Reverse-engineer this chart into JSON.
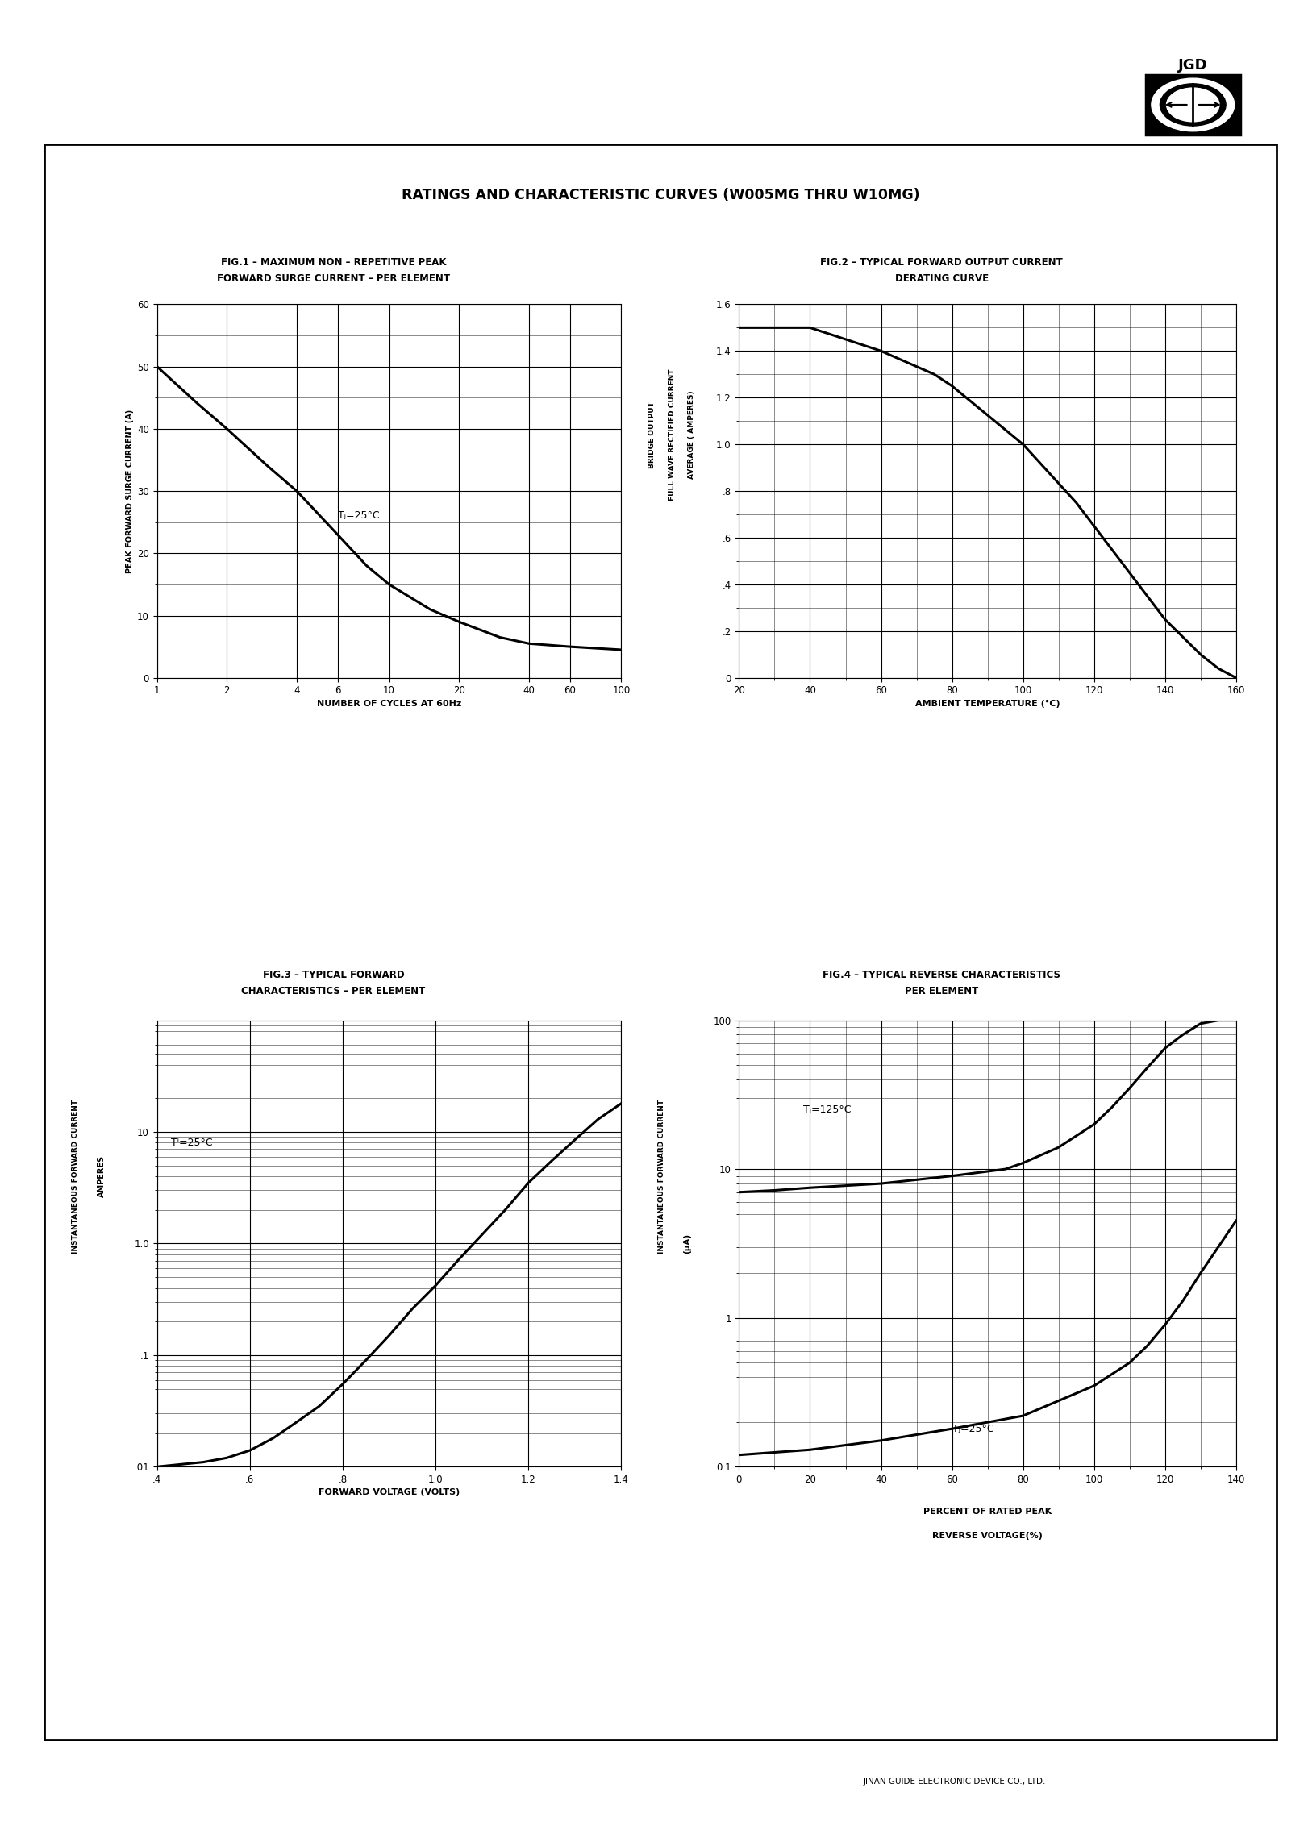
{
  "page_title": "RATINGS AND CHARACTERISTIC CURVES (W005MG THRU W10MG)",
  "fig1_title1": "FIG.1 – MAXIMUM NON – REPETITIVE PEAK",
  "fig1_title2": "FORWARD SURGE CURRENT – PER ELEMENT",
  "fig1_xlabel": "NUMBER OF CYCLES AT 60Hz",
  "fig1_ylabel": "PEAK FORWARD SURGE CURRENT (A)",
  "fig1_annotation": "Tⱼ=25°C",
  "fig1_x": [
    1,
    1.5,
    2,
    3,
    4,
    6,
    8,
    10,
    15,
    20,
    30,
    40,
    60,
    100
  ],
  "fig1_y": [
    50,
    44,
    40,
    34,
    30,
    23,
    18,
    15,
    11,
    9,
    6.5,
    5.5,
    5.0,
    4.5
  ],
  "fig1_xlim": [
    1,
    100
  ],
  "fig1_ylim": [
    0,
    60
  ],
  "fig1_yticks": [
    0,
    10,
    20,
    30,
    40,
    50,
    60
  ],
  "fig1_xticks": [
    1,
    2,
    4,
    6,
    10,
    20,
    40,
    60,
    100
  ],
  "fig2_title1": "FIG.2 – TYPICAL FORWARD OUTPUT CURRENT",
  "fig2_title2": "DERATING CURVE",
  "fig2_xlabel": "AMBIENT TEMPERATURE (°C)",
  "fig2_ylabel1": "BRIDGE OUTPUT",
  "fig2_ylabel2": "FULL WAVE RECTIFIED CURRENT",
  "fig2_ylabel3": "AVERAGE ( AMPERES)",
  "fig2_x": [
    20,
    25,
    40,
    60,
    75,
    80,
    100,
    115,
    120,
    135,
    140,
    150,
    155,
    160
  ],
  "fig2_y": [
    1.5,
    1.5,
    1.5,
    1.4,
    1.3,
    1.25,
    1.0,
    0.75,
    0.65,
    0.35,
    0.25,
    0.1,
    0.04,
    0.0
  ],
  "fig2_xlim": [
    20,
    160
  ],
  "fig2_ylim": [
    0,
    1.6
  ],
  "fig2_yticks": [
    0.0,
    0.2,
    0.4,
    0.6,
    0.8,
    1.0,
    1.2,
    1.4,
    1.6
  ],
  "fig2_ytick_labels": [
    "0",
    ".2",
    ".4",
    ".6",
    ".8",
    "1.0",
    "1.2",
    "1.4",
    "1.6"
  ],
  "fig2_xticks": [
    20,
    40,
    60,
    80,
    100,
    120,
    140,
    160
  ],
  "fig3_title1": "FIG.3 – TYPICAL FORWARD",
  "fig3_title2": "CHARACTERISTICS – PER ELEMENT",
  "fig3_xlabel": "FORWARD VOLTAGE (VOLTS)",
  "fig3_ylabel1": "INSTANTANEOUS FORWARD CURRENT",
  "fig3_ylabel2": "AMPERES",
  "fig3_annotation": "Tᴵ=25°C",
  "fig3_x": [
    0.4,
    0.5,
    0.55,
    0.6,
    0.65,
    0.7,
    0.75,
    0.8,
    0.85,
    0.9,
    0.95,
    1.0,
    1.05,
    1.1,
    1.15,
    1.2,
    1.25,
    1.3,
    1.35,
    1.4
  ],
  "fig3_y": [
    0.01,
    0.011,
    0.012,
    0.014,
    0.018,
    0.025,
    0.035,
    0.055,
    0.09,
    0.15,
    0.26,
    0.42,
    0.72,
    1.2,
    2.0,
    3.5,
    5.5,
    8.5,
    13.0,
    18.0
  ],
  "fig3_xlim": [
    0.4,
    1.4
  ],
  "fig3_ylim": [
    0.01,
    100
  ],
  "fig3_xticks": [
    0.4,
    0.6,
    0.8,
    1.0,
    1.2,
    1.4
  ],
  "fig3_xtick_labels": [
    ".4",
    ".6",
    ".8",
    "1.0",
    "1.2",
    "1.4"
  ],
  "fig3_yticks": [
    0.01,
    0.1,
    1.0,
    10.0
  ],
  "fig3_ytick_labels": [
    ".01",
    ".1",
    "1.0",
    "10"
  ],
  "fig4_title1": "FIG.4 – TYPICAL REVERSE CHARACTERISTICS",
  "fig4_title2": "PER ELEMENT",
  "fig4_xlabel1": "PERCENT OF RATED PEAK",
  "fig4_xlabel2": "REVERSE VOLTAGE(%)",
  "fig4_ylabel1": "INSTANTANEOUS FORWARD CURRENT",
  "fig4_ylabel2": "(µA)",
  "fig4_annotation1": "Tⱼ=125°C",
  "fig4_annotation2": "Tⱼ=25°C",
  "fig4_x_125": [
    0,
    10,
    20,
    40,
    60,
    75,
    80,
    90,
    100,
    105,
    110,
    115,
    120,
    125,
    130,
    135,
    140
  ],
  "fig4_y_125": [
    7.0,
    7.2,
    7.5,
    8.0,
    9.0,
    10.0,
    11.0,
    14.0,
    20.0,
    26.0,
    35.0,
    48.0,
    65.0,
    80.0,
    95.0,
    100.0,
    100.0
  ],
  "fig4_x_25": [
    0,
    20,
    40,
    60,
    80,
    100,
    110,
    115,
    120,
    125,
    130,
    135,
    140
  ],
  "fig4_y_25": [
    0.12,
    0.13,
    0.15,
    0.18,
    0.22,
    0.35,
    0.5,
    0.65,
    0.9,
    1.3,
    2.0,
    3.0,
    4.5
  ],
  "fig4_xlim": [
    0,
    140
  ],
  "fig4_ylim": [
    0.1,
    100
  ],
  "fig4_xticks": [
    0,
    20,
    40,
    60,
    80,
    100,
    120,
    140
  ],
  "fig4_yticks": [
    0.1,
    1.0,
    10.0,
    100.0
  ],
  "fig4_ytick_labels": [
    "0.1",
    "1",
    "10",
    "100"
  ],
  "footer": "JINAN GUIDE ELECTRONIC DEVICE CO., LTD.",
  "bg_color": "#ffffff",
  "line_color": "#000000"
}
